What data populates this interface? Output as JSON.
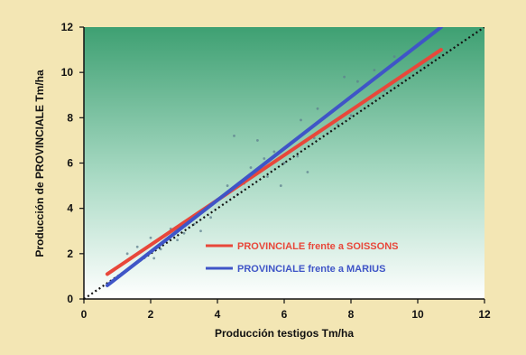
{
  "chart_data": {
    "type": "scatter",
    "xlabel": "Producción testigos Tm/ha",
    "ylabel": "Producción de PROVINCIALE Tm/ha",
    "xlim": [
      0,
      12
    ],
    "ylim": [
      0,
      12
    ],
    "xticks": [
      "0",
      "2",
      "4",
      "6",
      "8",
      "10",
      "12"
    ],
    "yticks": [
      "0",
      "2",
      "4",
      "6",
      "8",
      "10",
      "12"
    ],
    "grid": false,
    "legend_position": "bottom-right",
    "points": [
      {
        "x": 0.8,
        "y": 0.7
      },
      {
        "x": 1.3,
        "y": 2.0
      },
      {
        "x": 1.6,
        "y": 2.3
      },
      {
        "x": 2.0,
        "y": 2.7
      },
      {
        "x": 2.1,
        "y": 1.8
      },
      {
        "x": 2.3,
        "y": 2.2
      },
      {
        "x": 2.6,
        "y": 3.1
      },
      {
        "x": 2.8,
        "y": 2.6
      },
      {
        "x": 3.0,
        "y": 2.9
      },
      {
        "x": 3.3,
        "y": 3.3
      },
      {
        "x": 3.5,
        "y": 3.0
      },
      {
        "x": 3.8,
        "y": 3.6
      },
      {
        "x": 4.0,
        "y": 4.4
      },
      {
        "x": 4.3,
        "y": 5.0
      },
      {
        "x": 4.5,
        "y": 7.2
      },
      {
        "x": 4.6,
        "y": 4.6
      },
      {
        "x": 4.8,
        "y": 5.1
      },
      {
        "x": 5.0,
        "y": 5.8
      },
      {
        "x": 5.2,
        "y": 7.0
      },
      {
        "x": 5.4,
        "y": 6.2
      },
      {
        "x": 5.5,
        "y": 5.4
      },
      {
        "x": 5.7,
        "y": 6.5
      },
      {
        "x": 5.9,
        "y": 5.0
      },
      {
        "x": 6.0,
        "y": 6.0
      },
      {
        "x": 6.2,
        "y": 6.9
      },
      {
        "x": 6.4,
        "y": 6.3
      },
      {
        "x": 6.5,
        "y": 7.9
      },
      {
        "x": 6.7,
        "y": 5.6
      },
      {
        "x": 6.9,
        "y": 7.1
      },
      {
        "x": 7.0,
        "y": 8.4
      },
      {
        "x": 7.3,
        "y": 7.3
      },
      {
        "x": 7.6,
        "y": 7.7
      },
      {
        "x": 7.8,
        "y": 9.8
      },
      {
        "x": 8.0,
        "y": 8.1
      },
      {
        "x": 8.2,
        "y": 9.6
      },
      {
        "x": 8.6,
        "y": 8.9
      },
      {
        "x": 8.7,
        "y": 10.1
      },
      {
        "x": 9.0,
        "y": 9.2
      },
      {
        "x": 9.3,
        "y": 10.7
      }
    ],
    "series": [
      {
        "name": "PROVINCIALE frente a SOISSONS",
        "color": "#e8473a",
        "x": [
          0.7,
          10.7
        ],
        "y": [
          1.1,
          11.0
        ]
      },
      {
        "name": "PROVINCIALE frente a MARIUS",
        "color": "#3f55c7",
        "x": [
          0.7,
          10.7
        ],
        "y": [
          0.6,
          12.0
        ]
      }
    ],
    "reference_line": {
      "style": "dotted",
      "color": "#111111",
      "x": [
        0,
        12
      ],
      "y": [
        0,
        12
      ]
    }
  }
}
